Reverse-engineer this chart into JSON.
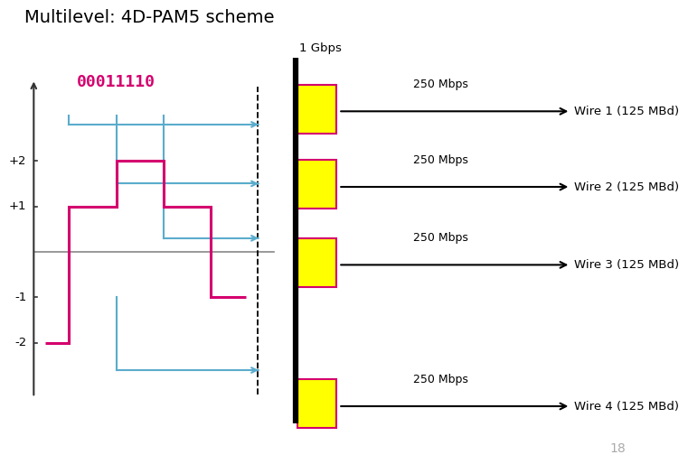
{
  "title": "Multilevel: 4D-PAM5 scheme",
  "title_fontsize": 14,
  "background_color": "#ffffff",
  "bitstring": "00011110",
  "bitstring_color": "#d4006e",
  "page_number": "18",
  "signal_color": "#d4006e",
  "blue_color": "#5aaccc",
  "axis_color": "#333333",
  "zero_line_color": "#888888",
  "wire_bar_color": "#ffff00",
  "wire_bar_border": "#d4006e",
  "wire_labels": [
    "Wire 1 (125 MBd)",
    "Wire 2 (125 MBd)",
    "Wire 3 (125 MBd)",
    "Wire 4 (125 MBd)"
  ],
  "wire_mbps": "250 Mbps",
  "gbps_label": "1 Gbps",
  "ytick_labels": [
    "+2",
    "+1",
    "-1",
    "-2"
  ],
  "ytick_values": [
    2,
    1,
    -1,
    -2
  ],
  "signal_x": [
    0.5,
    1.5,
    1.5,
    3.5,
    3.5,
    5.5,
    5.5,
    7.5,
    7.5,
    9.0
  ],
  "signal_y": [
    -2,
    -2,
    1,
    1,
    2,
    2,
    1,
    1,
    -1,
    -1
  ]
}
